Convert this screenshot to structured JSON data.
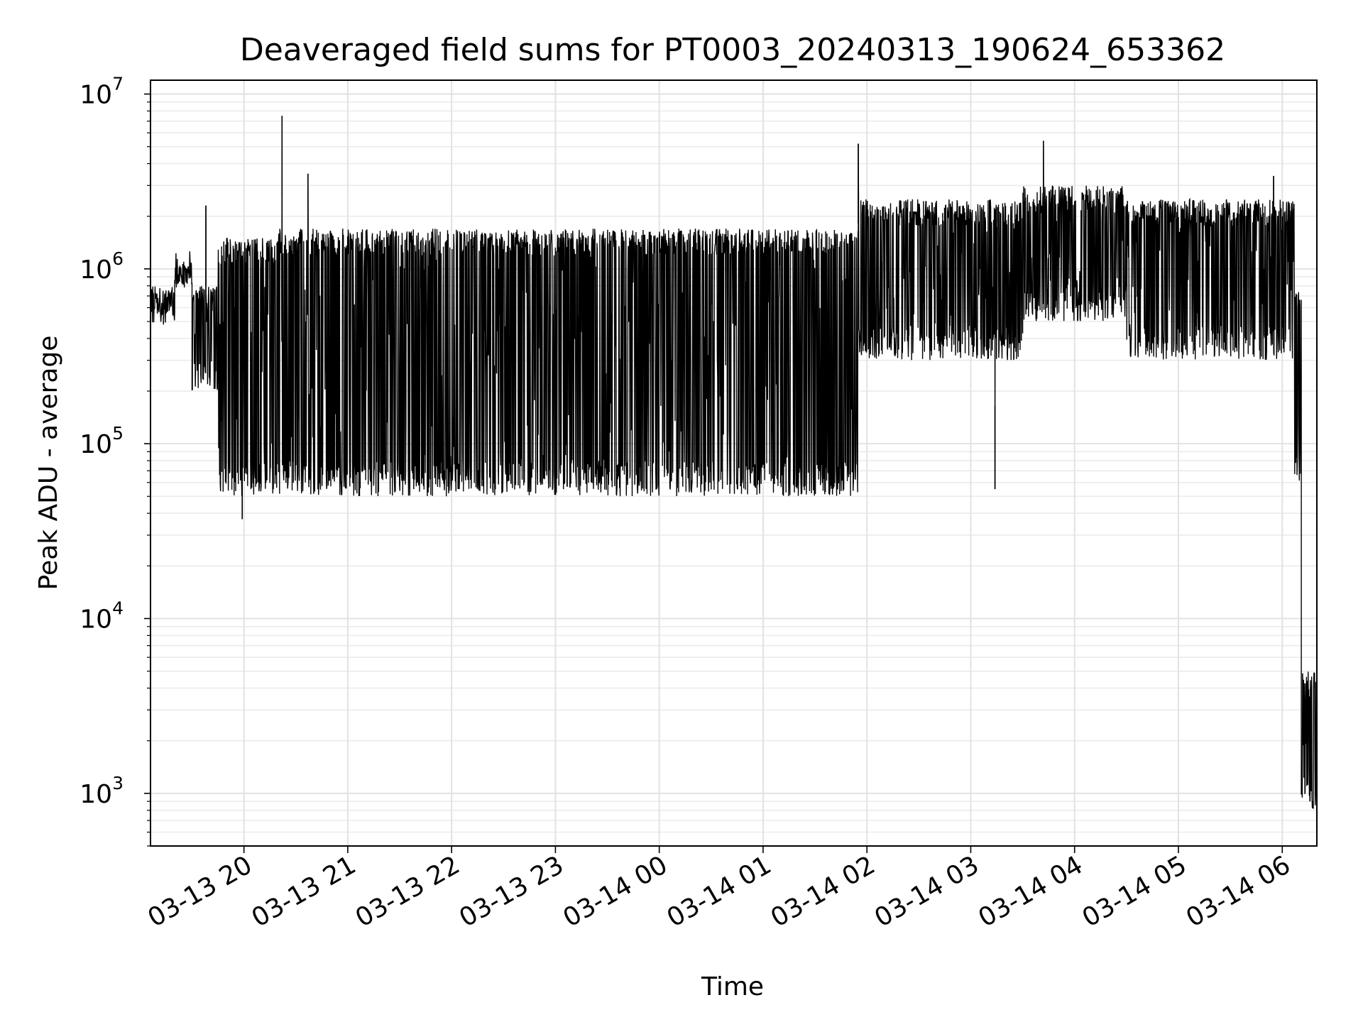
{
  "chart_data": {
    "type": "line",
    "title": "Deaveraged field sums for PT0003_20240313_190624_653362",
    "xlabel": "Time",
    "ylabel": "Peak ADU - average",
    "yscale": "log",
    "ylim": [
      500,
      12000000
    ],
    "xlim": [
      "2024-03-13 19:06",
      "2024-03-14 06:20"
    ],
    "x_tick_labels": [
      "03-13 20",
      "03-13 21",
      "03-13 22",
      "03-13 23",
      "03-14 00",
      "03-14 01",
      "03-14 02",
      "03-14 03",
      "03-14 04",
      "03-14 05",
      "03-14 06"
    ],
    "y_ticks": [
      {
        "base": "10",
        "exp": "3",
        "value": 1000
      },
      {
        "base": "10",
        "exp": "4",
        "value": 10000
      },
      {
        "base": "10",
        "exp": "5",
        "value": 100000
      },
      {
        "base": "10",
        "exp": "6",
        "value": 1000000
      },
      {
        "base": "10",
        "exp": "7",
        "value": 10000000
      }
    ],
    "grid": true,
    "legend": "none",
    "line_color": "#000000",
    "series": [
      {
        "segments": [
          {
            "start": "2024-03-13 19:06",
            "end": "2024-03-13 19:20",
            "low": 480000,
            "high": 800000
          },
          {
            "start": "2024-03-13 19:20",
            "end": "2024-03-13 19:30",
            "low": 800000,
            "high": 1100000
          },
          {
            "start": "2024-03-13 19:30",
            "end": "2024-03-13 19:45",
            "low": 200000,
            "high": 800000
          },
          {
            "start": "2024-03-13 19:45",
            "end": "2024-03-13 20:20",
            "low": 50000,
            "high": 1500000
          },
          {
            "start": "2024-03-13 20:20",
            "end": "2024-03-14 01:55",
            "low": 50000,
            "high": 1700000
          },
          {
            "start": "2024-03-14 01:55",
            "end": "2024-03-14 03:30",
            "low": 300000,
            "high": 2500000
          },
          {
            "start": "2024-03-14 03:30",
            "end": "2024-03-14 04:30",
            "low": 500000,
            "high": 3000000
          },
          {
            "start": "2024-03-14 04:30",
            "end": "2024-03-14 06:07",
            "low": 300000,
            "high": 2500000
          },
          {
            "start": "2024-03-14 06:07",
            "end": "2024-03-14 06:11",
            "low": 60000,
            "high": 800000
          },
          {
            "start": "2024-03-14 06:11",
            "end": "2024-03-14 06:20",
            "low": 800,
            "high": 5000
          }
        ],
        "peaks": [
          {
            "x": "2024-03-13 19:38",
            "y": 2300000
          },
          {
            "x": "2024-03-13 20:22",
            "y": 7500000
          },
          {
            "x": "2024-03-13 20:37",
            "y": 3500000
          },
          {
            "x": "2024-03-14 01:55",
            "y": 5200000
          },
          {
            "x": "2024-03-14 03:42",
            "y": 5400000
          },
          {
            "x": "2024-03-14 05:55",
            "y": 3400000
          }
        ],
        "troughs": [
          {
            "x": "2024-03-13 19:59",
            "y": 37000
          },
          {
            "x": "2024-03-14 03:14",
            "y": 55000
          },
          {
            "x": "2024-03-14 06:16",
            "y": 900
          },
          {
            "x": "2024-03-14 06:20",
            "y": 780
          }
        ]
      }
    ]
  }
}
